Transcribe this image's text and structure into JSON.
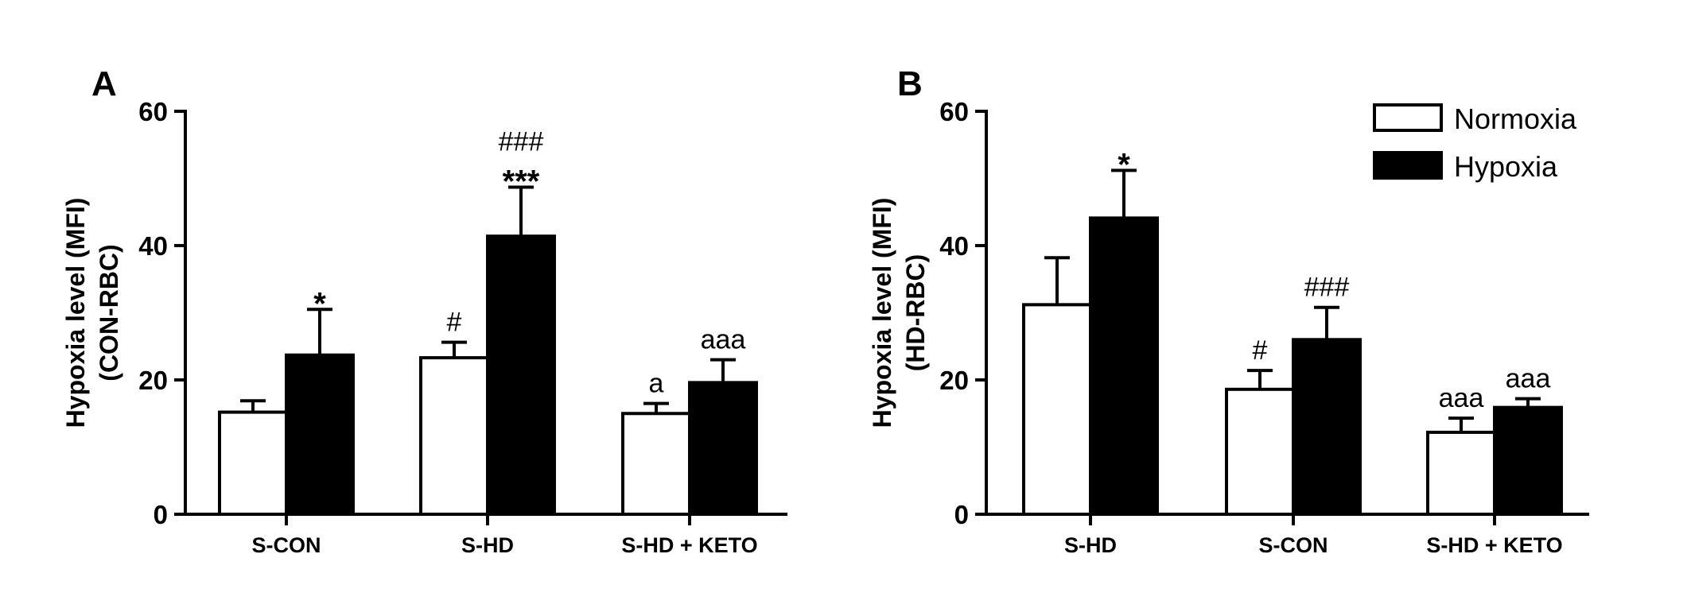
{
  "chart_data": [
    {
      "type": "bar",
      "panel": "A",
      "title": "",
      "xlabel": "",
      "ylabel_line1": "Hypoxia level (MFI)",
      "ylabel_line2": "(CON-RBC)",
      "ylim": [
        0,
        60
      ],
      "yticks": [
        0,
        20,
        40,
        60
      ],
      "grid": false,
      "categories": [
        "S-CON",
        "S-HD",
        "S-HD + KETO"
      ],
      "series": [
        {
          "name": "Normoxia",
          "color": "#ffffff",
          "values": [
            15.2,
            23.3,
            15.0
          ],
          "errors": [
            1.7,
            2.3,
            1.5
          ]
        },
        {
          "name": "Hypoxia",
          "color": "#000000",
          "values": [
            23.7,
            41.4,
            19.6
          ],
          "errors": [
            6.8,
            7.3,
            3.4
          ]
        }
      ],
      "annotations": [
        {
          "series": 1,
          "category": 0,
          "lines": [
            "*"
          ]
        },
        {
          "series": 0,
          "category": 1,
          "lines": [
            "#"
          ]
        },
        {
          "series": 1,
          "category": 1,
          "lines": [
            "###",
            "***"
          ]
        },
        {
          "series": 0,
          "category": 2,
          "lines": [
            "a"
          ]
        },
        {
          "series": 1,
          "category": 2,
          "lines": [
            "aaa"
          ]
        }
      ]
    },
    {
      "type": "bar",
      "panel": "B",
      "title": "",
      "xlabel": "",
      "ylabel_line1": "Hypoxia level (MFI)",
      "ylabel_line2": "(HD-RBC)",
      "ylim": [
        0,
        60
      ],
      "yticks": [
        0,
        20,
        40,
        60
      ],
      "grid": false,
      "categories": [
        "S-HD",
        "S-CON",
        "S-HD + KETO"
      ],
      "series": [
        {
          "name": "Normoxia",
          "color": "#ffffff",
          "values": [
            31.2,
            18.6,
            12.2
          ],
          "errors": [
            7.0,
            2.8,
            2.1
          ]
        },
        {
          "name": "Hypoxia",
          "color": "#000000",
          "values": [
            44.1,
            26.0,
            15.9
          ],
          "errors": [
            7.1,
            4.8,
            1.3
          ]
        }
      ],
      "annotations": [
        {
          "series": 1,
          "category": 0,
          "lines": [
            "*"
          ]
        },
        {
          "series": 0,
          "category": 1,
          "lines": [
            "#"
          ]
        },
        {
          "series": 1,
          "category": 1,
          "lines": [
            "###"
          ]
        },
        {
          "series": 0,
          "category": 2,
          "lines": [
            "aaa"
          ]
        },
        {
          "series": 1,
          "category": 2,
          "lines": [
            "aaa"
          ]
        }
      ],
      "legend": {
        "placement": "top-right",
        "items": [
          "Normoxia",
          "Hypoxia"
        ]
      }
    }
  ]
}
